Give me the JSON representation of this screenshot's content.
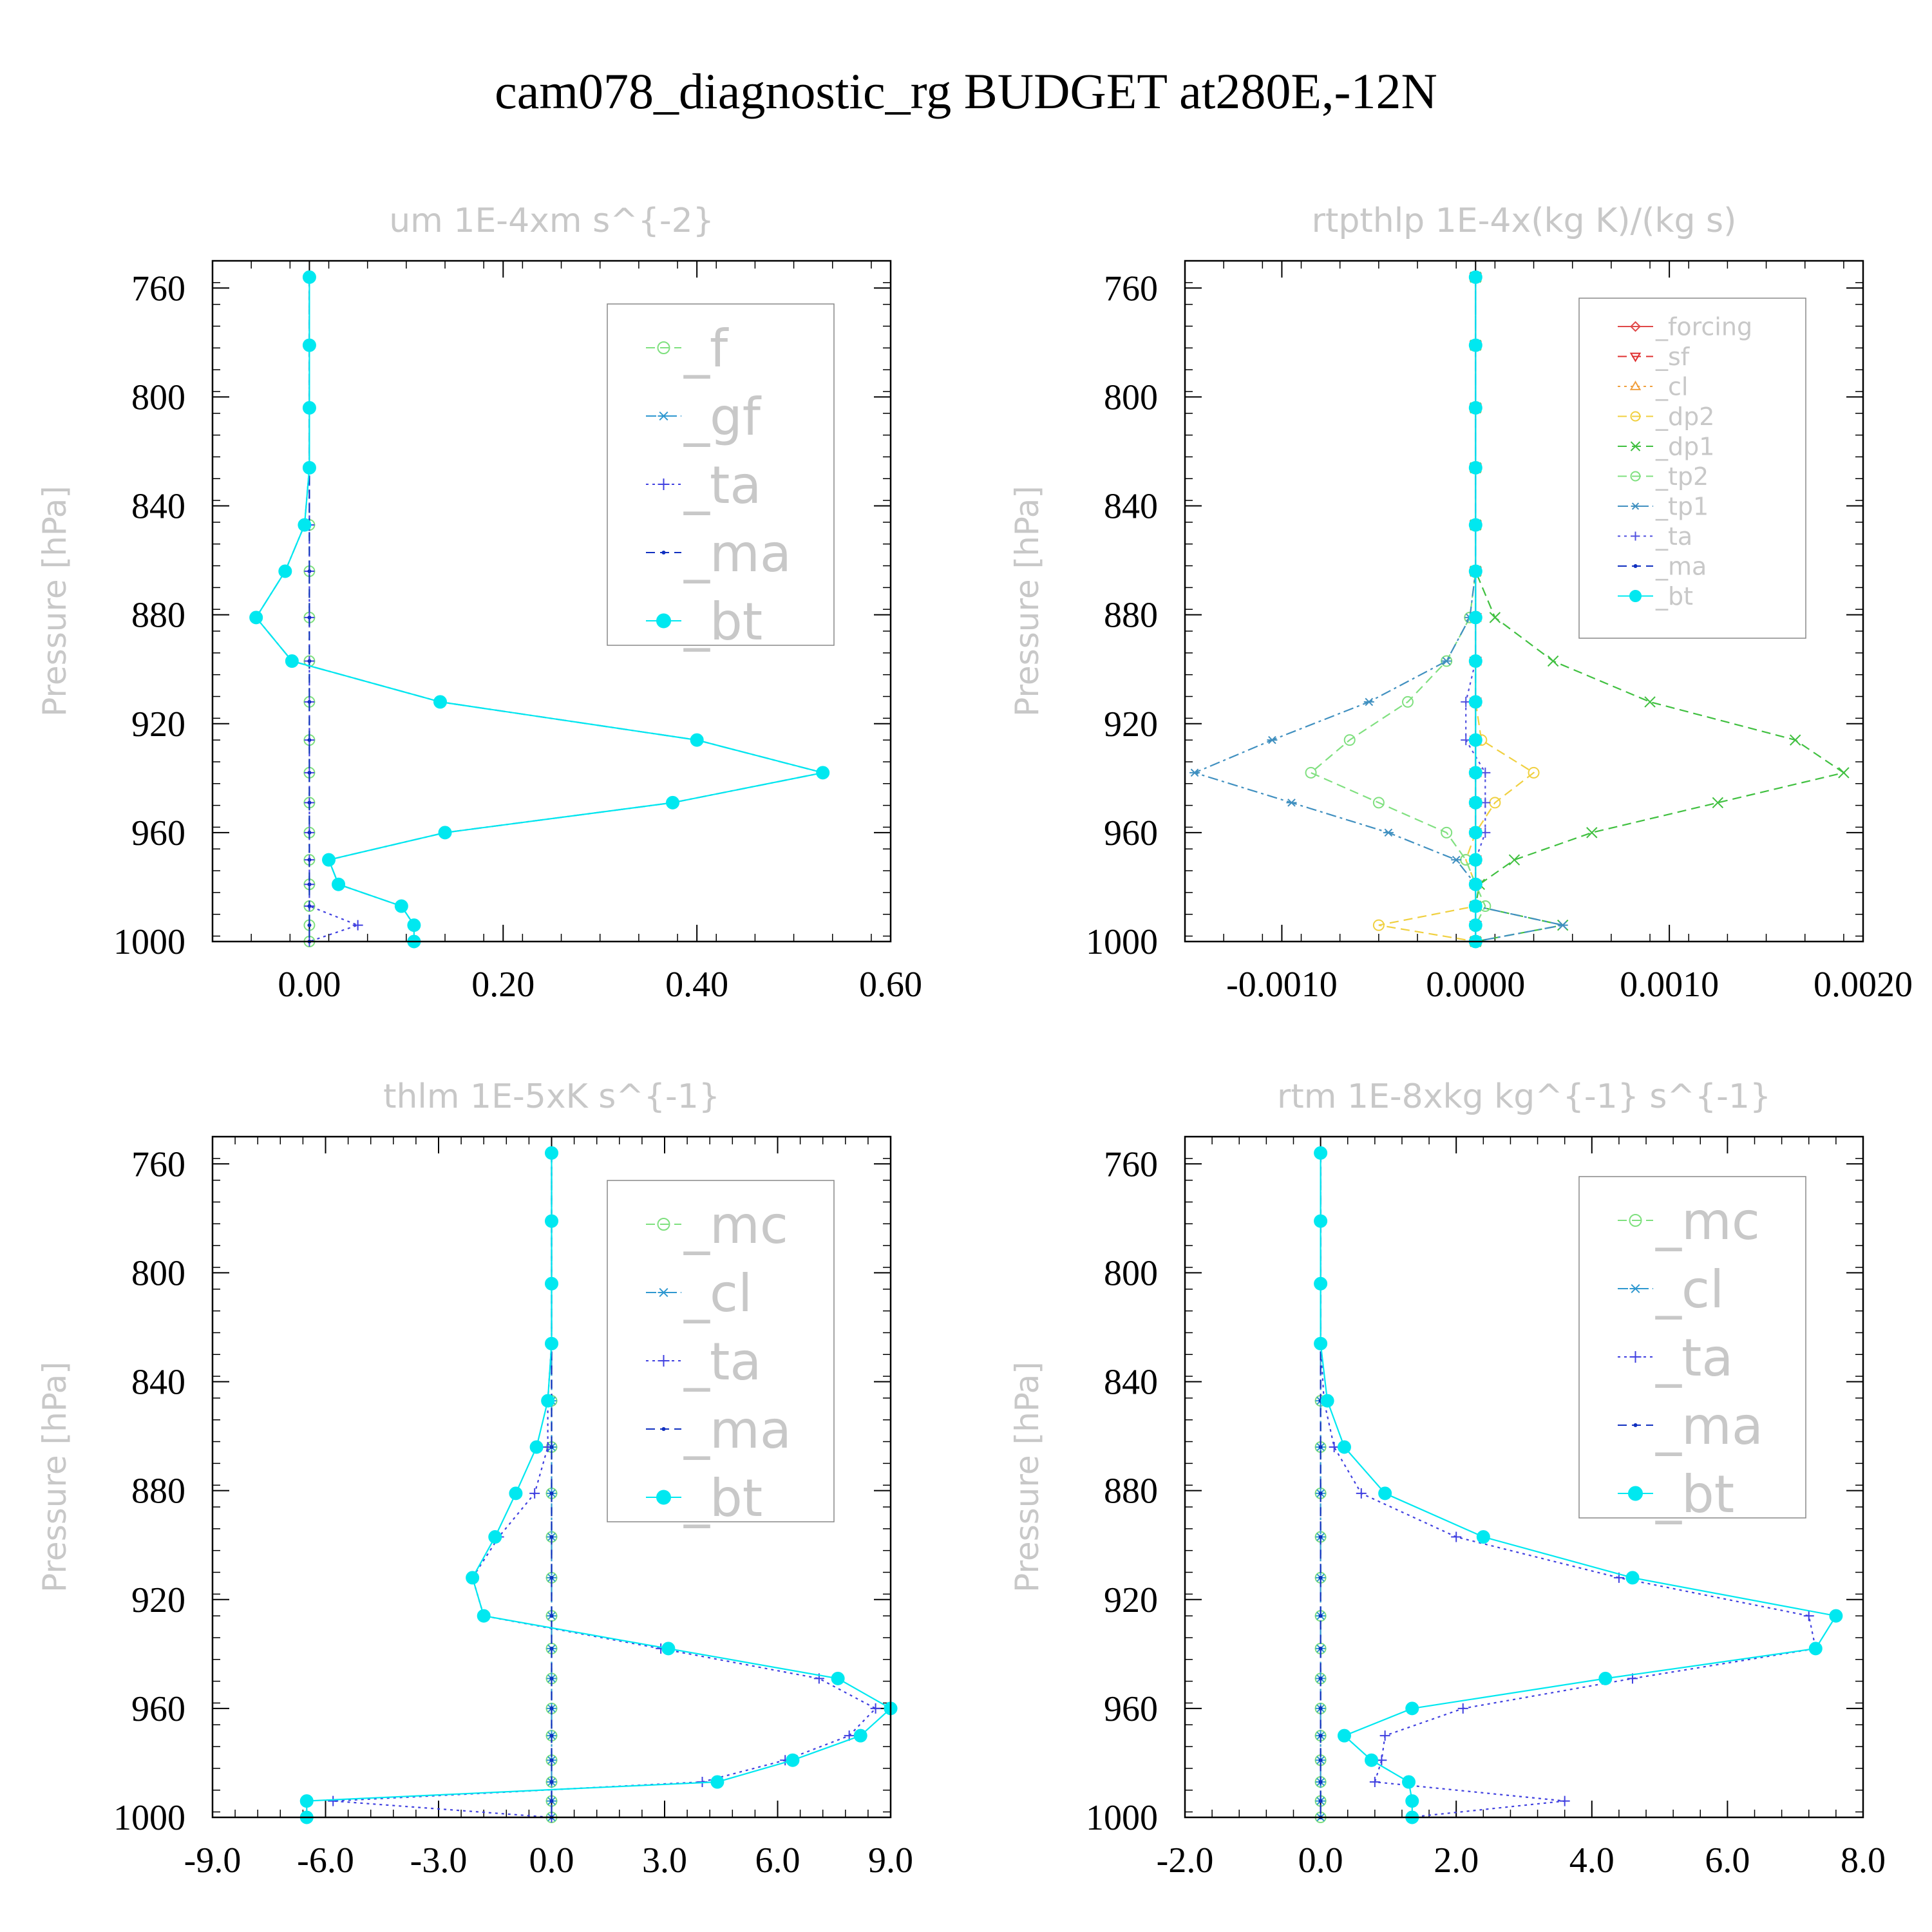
{
  "title": "cam078_diagnostic_rg  BUDGET at280E,-12N",
  "chart_data": [
    {
      "type": "line",
      "title": "um  1E-4xm s^{-2}",
      "ylabel": "Pressure [hPa]",
      "xlim": [
        -0.1,
        0.6
      ],
      "ylim": [
        750,
        1000
      ],
      "xticks": [
        0.0,
        0.2,
        0.4,
        0.6
      ],
      "xtick_labels": [
        "0.00",
        "0.20",
        "0.40",
        "0.60"
      ],
      "yticks": [
        760,
        800,
        840,
        880,
        920,
        960,
        1000
      ],
      "ytick_labels": [
        "760",
        "800",
        "840",
        "880",
        "920",
        "960",
        "1000"
      ],
      "y": [
        756,
        781,
        804,
        826,
        847,
        864,
        881,
        897,
        912,
        926,
        938,
        949,
        960,
        970,
        979,
        987,
        994,
        1000
      ],
      "legend_size": "large",
      "series": [
        {
          "name": "_f",
          "color": "#7ee07e",
          "marker": "circle-open",
          "dash": "dash",
          "values": [
            0,
            0,
            0,
            0,
            0,
            0,
            0,
            0,
            0,
            0,
            0,
            0,
            0,
            0,
            0,
            0,
            0,
            0
          ]
        },
        {
          "name": "_gf",
          "color": "#2f98d0",
          "marker": "asterisk",
          "dash": "dashdot",
          "values": [
            0,
            0,
            0,
            0,
            -0.005,
            -0.025,
            -0.055,
            -0.018,
            0.135,
            0.4,
            0.53,
            0.375,
            0.14,
            0.02,
            0.03,
            0.095,
            0.108,
            0.108
          ]
        },
        {
          "name": "_ta",
          "color": "#4040e0",
          "marker": "plus",
          "dash": "dot",
          "values": [
            0,
            0,
            0,
            0,
            0,
            0,
            0,
            0,
            0,
            0,
            0,
            0,
            0,
            0,
            0,
            0,
            0.05,
            0.0
          ]
        },
        {
          "name": "_ma",
          "color": "#1030c0",
          "marker": "dot",
          "dash": "dash",
          "values": [
            0,
            0,
            0,
            0,
            0,
            0,
            0,
            0,
            0,
            0,
            0,
            0,
            0,
            0,
            0,
            0,
            0,
            0
          ]
        },
        {
          "name": "_bt",
          "color": "#00e8f0",
          "marker": "filled-circle",
          "dash": "solid",
          "values": [
            0,
            0,
            0,
            0,
            -0.005,
            -0.025,
            -0.055,
            -0.018,
            0.135,
            0.4,
            0.53,
            0.375,
            0.14,
            0.02,
            0.03,
            0.095,
            0.108,
            0.108
          ]
        }
      ]
    },
    {
      "type": "line",
      "title": "rtpthlp  1E-4x(kg K)/(kg s)",
      "ylabel": "Pressure [hPa]",
      "xlim": [
        -0.0015,
        0.002
      ],
      "ylim": [
        750,
        1000
      ],
      "xticks": [
        -0.001,
        0.0,
        0.001,
        0.002
      ],
      "xtick_labels": [
        "-0.0010",
        "0.0000",
        "0.0010",
        "0.0020"
      ],
      "yticks": [
        760,
        800,
        840,
        880,
        920,
        960,
        1000
      ],
      "ytick_labels": [
        "760",
        "800",
        "840",
        "880",
        "920",
        "960",
        "1000"
      ],
      "y": [
        756,
        781,
        804,
        826,
        847,
        864,
        881,
        897,
        912,
        926,
        938,
        949,
        960,
        970,
        979,
        987,
        994,
        1000
      ],
      "legend_size": "small",
      "series": [
        {
          "name": "_forcing",
          "color": "#e04848",
          "marker": "diamond-open",
          "dash": "solid",
          "values": [
            0,
            0,
            0,
            0,
            0,
            0,
            0,
            0,
            0,
            0,
            0,
            0,
            0,
            0,
            0,
            0,
            0,
            0
          ]
        },
        {
          "name": "_sf",
          "color": "#e03030",
          "marker": "triangle-down-open",
          "dash": "dash",
          "values": [
            0,
            0,
            0,
            0,
            0,
            0,
            0,
            0,
            0,
            0,
            0,
            0,
            0,
            0,
            0,
            0,
            0,
            0
          ]
        },
        {
          "name": "_cl",
          "color": "#f0a040",
          "marker": "triangle-up-open",
          "dash": "dot",
          "values": [
            0,
            0,
            0,
            0,
            0,
            0,
            0,
            0,
            0,
            0,
            0,
            0,
            0,
            0,
            0,
            0,
            0,
            0
          ]
        },
        {
          "name": "_dp2",
          "color": "#f0d040",
          "marker": "circle-open",
          "dash": "dash",
          "values": [
            0,
            0,
            0,
            0,
            0,
            0,
            0,
            0,
            0,
            3e-05,
            0.0003,
            0.0001,
            0,
            -5e-05,
            0,
            0,
            -0.0005,
            0
          ]
        },
        {
          "name": "_dp1",
          "color": "#40c040",
          "marker": "x",
          "dash": "dash",
          "values": [
            0,
            0,
            0,
            0,
            0,
            0,
            0.0001,
            0.0004,
            0.0009,
            0.00165,
            0.0019,
            0.00125,
            0.0006,
            0.0002,
            2e-05,
            0,
            0.00045,
            0
          ]
        },
        {
          "name": "_tp2",
          "color": "#80e080",
          "marker": "circle-open",
          "dash": "dash",
          "values": [
            0,
            0,
            0,
            0,
            0,
            0,
            -3e-05,
            -0.00015,
            -0.00035,
            -0.00065,
            -0.00085,
            -0.0005,
            -0.00015,
            -5e-05,
            0,
            5e-05,
            0,
            0
          ]
        },
        {
          "name": "_tp1",
          "color": "#4090c0",
          "marker": "asterisk",
          "dash": "dashdot",
          "values": [
            0,
            0,
            0,
            0,
            0,
            0,
            -3e-05,
            -0.00015,
            -0.00055,
            -0.00105,
            -0.00145,
            -0.00095,
            -0.00045,
            -0.0001,
            0,
            0,
            0.00045,
            0
          ]
        },
        {
          "name": "_ta",
          "color": "#5050e0",
          "marker": "plus",
          "dash": "dot",
          "values": [
            0,
            0,
            0,
            0,
            0,
            0,
            0,
            0,
            -5e-05,
            -5e-05,
            5e-05,
            5e-05,
            5e-05,
            0,
            0,
            0,
            0,
            0
          ]
        },
        {
          "name": "_ma",
          "color": "#1030c0",
          "marker": "dot",
          "dash": "dash",
          "values": [
            0,
            0,
            0,
            0,
            0,
            0,
            0,
            0,
            0,
            0,
            0,
            0,
            0,
            0,
            0,
            0,
            0,
            0
          ]
        },
        {
          "name": "_bt",
          "color": "#00e8f0",
          "marker": "filled-circle",
          "dash": "solid",
          "values": [
            0,
            0,
            0,
            0,
            0,
            0,
            0,
            0,
            0,
            0,
            0,
            0,
            0,
            0,
            0,
            0,
            0,
            0
          ]
        }
      ]
    },
    {
      "type": "line",
      "title": "thlm  1E-5xK s^{-1}",
      "ylabel": "Pressure [hPa]",
      "xlim": [
        -9.0,
        9.0
      ],
      "ylim": [
        750,
        1000
      ],
      "xticks": [
        -9,
        -6,
        -3,
        0,
        3,
        6,
        9
      ],
      "xtick_labels": [
        "-9.0",
        "-6.0",
        "-3.0",
        "0.0",
        "3.0",
        "6.0",
        "9.0"
      ],
      "yticks": [
        760,
        800,
        840,
        880,
        920,
        960,
        1000
      ],
      "ytick_labels": [
        "760",
        "800",
        "840",
        "880",
        "920",
        "960",
        "1000"
      ],
      "y": [
        756,
        781,
        804,
        826,
        847,
        864,
        881,
        897,
        912,
        926,
        938,
        949,
        960,
        970,
        979,
        987,
        994,
        1000
      ],
      "legend_size": "large",
      "series": [
        {
          "name": "_mc",
          "color": "#7ee07e",
          "marker": "circle-open",
          "dash": "dash",
          "values": [
            0,
            0,
            0,
            0,
            0,
            0,
            0,
            0,
            0,
            0,
            0,
            0,
            0,
            0,
            0,
            0,
            0,
            0
          ]
        },
        {
          "name": "_cl",
          "color": "#2f98d0",
          "marker": "asterisk",
          "dash": "dashdot",
          "values": [
            0,
            0,
            0,
            0,
            0,
            0,
            0,
            0,
            0,
            0,
            0,
            0,
            0,
            0,
            0,
            0,
            0,
            0
          ]
        },
        {
          "name": "_ta",
          "color": "#4040e0",
          "marker": "plus",
          "dash": "dot",
          "values": [
            0,
            0,
            0,
            0,
            -0.1,
            -0.1,
            -0.45,
            -1.4,
            -2.1,
            -1.8,
            2.9,
            7.1,
            8.6,
            7.9,
            6.2,
            4.0,
            -5.8,
            0.0
          ]
        },
        {
          "name": "_ma",
          "color": "#1030c0",
          "marker": "dot",
          "dash": "dash",
          "values": [
            0,
            0,
            0,
            0,
            0,
            0,
            0,
            0,
            0,
            0,
            0,
            0,
            0,
            0,
            0,
            0,
            0,
            0
          ]
        },
        {
          "name": "_bt",
          "color": "#00e8f0",
          "marker": "filled-circle",
          "dash": "solid",
          "values": [
            0,
            0,
            0,
            0,
            -0.1,
            -0.4,
            -0.95,
            -1.5,
            -2.1,
            -1.8,
            3.1,
            7.6,
            9.0,
            8.2,
            6.4,
            4.4,
            -6.5,
            -6.5
          ]
        }
      ]
    },
    {
      "type": "line",
      "title": "rtm  1E-8xkg kg^{-1} s^{-1}",
      "ylabel": "Pressure [hPa]",
      "xlim": [
        -2.0,
        8.0
      ],
      "ylim": [
        750,
        1000
      ],
      "xticks": [
        -2,
        0,
        2,
        4,
        6,
        8
      ],
      "xtick_labels": [
        "-2.0",
        "0.0",
        "2.0",
        "4.0",
        "6.0",
        "8.0"
      ],
      "yticks": [
        760,
        800,
        840,
        880,
        920,
        960,
        1000
      ],
      "ytick_labels": [
        "760",
        "800",
        "840",
        "880",
        "920",
        "960",
        "1000"
      ],
      "y": [
        756,
        781,
        804,
        826,
        847,
        864,
        881,
        897,
        912,
        926,
        938,
        949,
        960,
        970,
        979,
        987,
        994,
        1000
      ],
      "legend_size": "large",
      "series": [
        {
          "name": "_mc",
          "color": "#7ee07e",
          "marker": "circle-open",
          "dash": "dash",
          "values": [
            0,
            0,
            0,
            0,
            0,
            0,
            0,
            0,
            0,
            0,
            0,
            0,
            0,
            0,
            0,
            0,
            0,
            0
          ]
        },
        {
          "name": "_cl",
          "color": "#2f98d0",
          "marker": "asterisk",
          "dash": "dashdot",
          "values": [
            0,
            0,
            0,
            0,
            0,
            0,
            0,
            0,
            0,
            0,
            0,
            0,
            0,
            0,
            0,
            0,
            0,
            0
          ]
        },
        {
          "name": "_ta",
          "color": "#4040e0",
          "marker": "plus",
          "dash": "dot",
          "values": [
            0,
            0,
            0,
            0,
            0.05,
            0.2,
            0.6,
            2.0,
            4.4,
            7.2,
            7.3,
            4.6,
            2.1,
            0.95,
            0.9,
            0.8,
            3.6,
            1.3
          ]
        },
        {
          "name": "_ma",
          "color": "#1030c0",
          "marker": "dot",
          "dash": "dash",
          "values": [
            0,
            0,
            0,
            0,
            0,
            0,
            0,
            0,
            0,
            0,
            0,
            0,
            0,
            0,
            0,
            0,
            0,
            0
          ]
        },
        {
          "name": "_bt",
          "color": "#00e8f0",
          "marker": "filled-circle",
          "dash": "solid",
          "values": [
            0,
            0,
            0,
            0,
            0.1,
            0.35,
            0.95,
            2.4,
            4.6,
            7.6,
            7.3,
            4.2,
            1.35,
            0.35,
            0.75,
            1.3,
            1.35,
            1.35
          ]
        }
      ]
    }
  ]
}
